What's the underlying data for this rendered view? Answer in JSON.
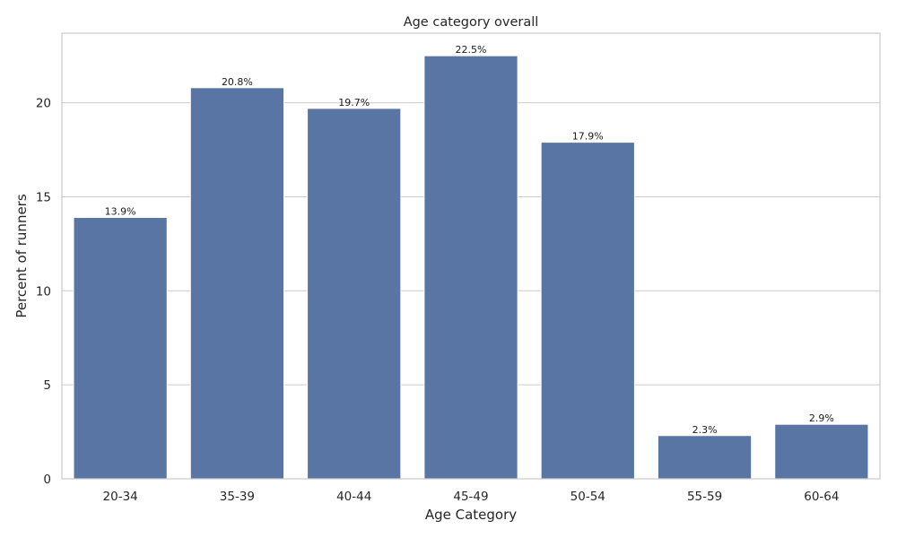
{
  "chart_data": {
    "type": "bar",
    "title": "Age category overall",
    "xlabel": "Age Category",
    "ylabel": "Percent of runners",
    "categories": [
      "20-34",
      "35-39",
      "40-44",
      "45-49",
      "50-54",
      "55-59",
      "60-64"
    ],
    "values": [
      13.9,
      20.8,
      19.7,
      22.5,
      17.9,
      2.3,
      2.9
    ],
    "value_labels": [
      "13.9%",
      "20.8%",
      "19.7%",
      "22.5%",
      "17.9%",
      "2.3%",
      "2.9%"
    ],
    "ylim": [
      0,
      23.7
    ],
    "yticks": [
      0,
      5,
      10,
      15,
      20
    ],
    "grid": true,
    "bar_color": "#5875a4"
  }
}
